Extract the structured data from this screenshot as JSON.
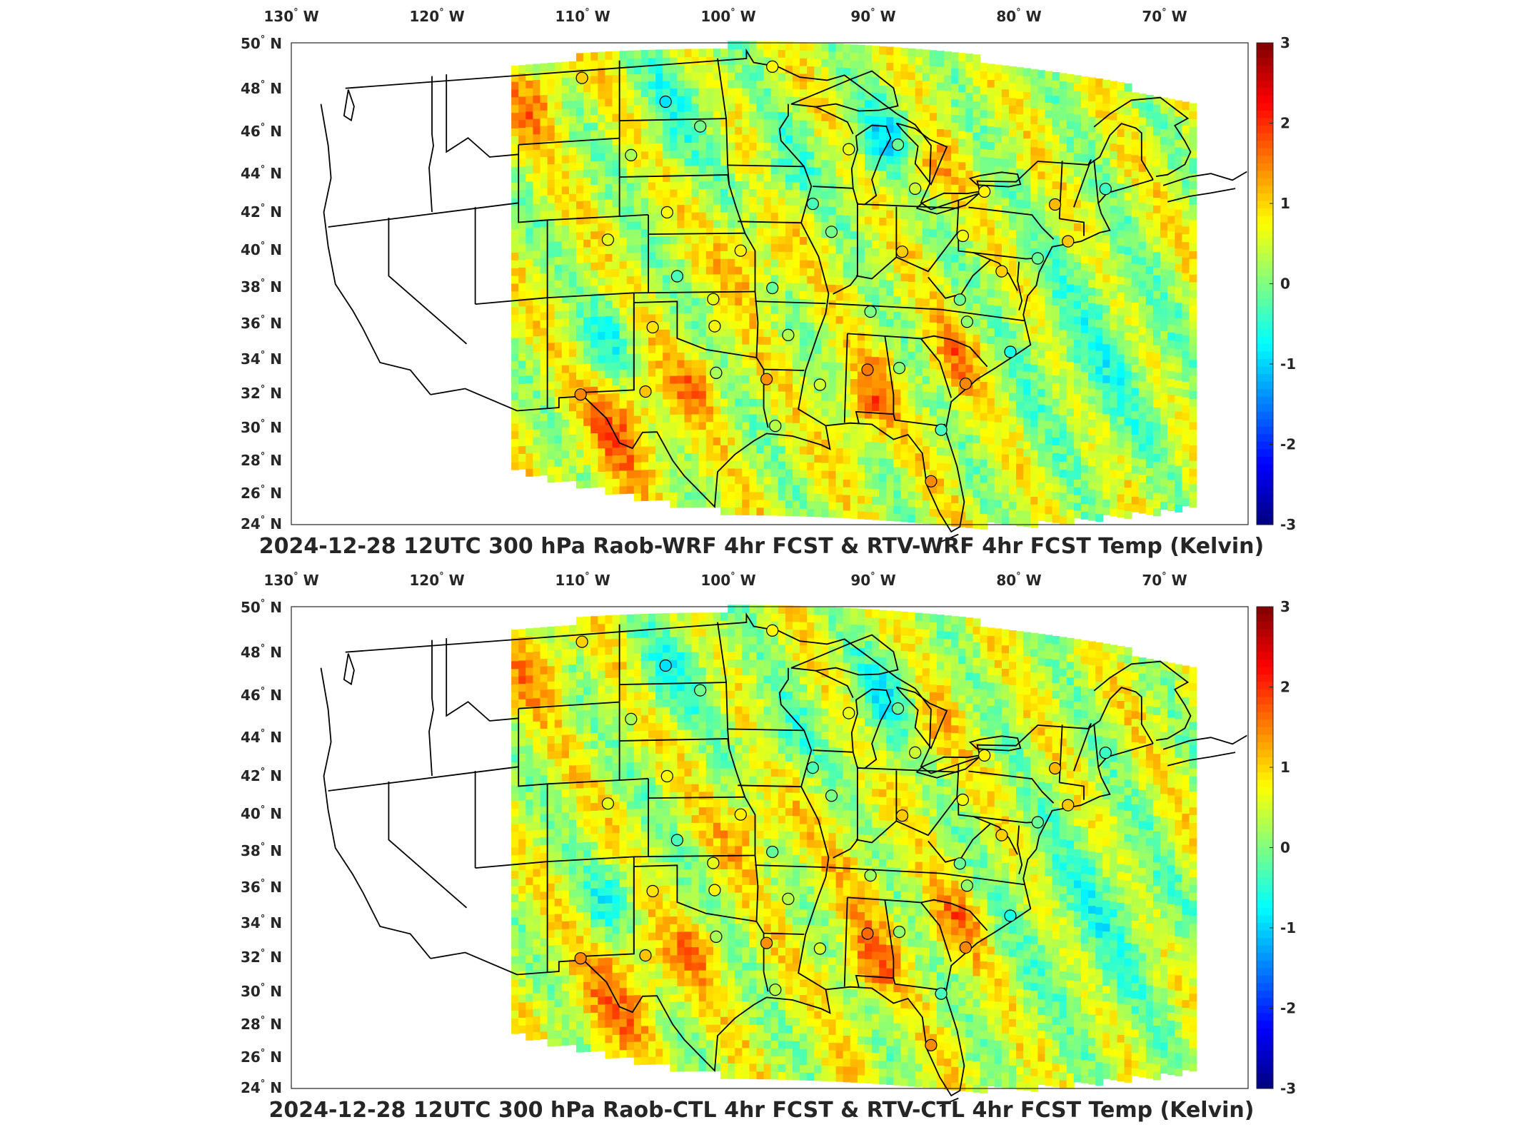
{
  "panels": [
    {
      "title": "2024-12-28 12UTC 300 hPa Raob-WRF 4hr FCST & RTV-WRF 4hr FCST Temp (Kelvin)",
      "field_variant": "wrf"
    },
    {
      "title": "2024-12-28 12UTC 300 hPa Raob-CTL 4hr FCST & RTV-CTL 4hr FCST Temp (Kelvin)",
      "field_variant": "ctl"
    }
  ],
  "lon_labels": [
    "130",
    "120",
    "110",
    "100",
    "90",
    "80",
    "70"
  ],
  "lon_suffix": "W",
  "lat_labels": [
    "50",
    "48",
    "46",
    "44",
    "42",
    "40",
    "38",
    "36",
    "34",
    "32",
    "30",
    "28",
    "26",
    "24"
  ],
  "lat_suffix": "N",
  "colorbar": {
    "ticks": [
      "3",
      "2",
      "1",
      "0",
      "-1",
      "-2",
      "-3"
    ],
    "range": [
      -3,
      3
    ],
    "colormap": "jet"
  },
  "colors": {
    "border": "#000000",
    "frame": "#262626",
    "text": "#262626"
  },
  "raob_stations": [
    {
      "lat": 48.2,
      "lon": -106.6
    },
    {
      "lat": 46.8,
      "lon": -100.8
    },
    {
      "lat": 45.5,
      "lon": -98.4
    },
    {
      "lat": 44.1,
      "lon": -103.2
    },
    {
      "lat": 41.1,
      "lon": -100.7
    },
    {
      "lat": 39.8,
      "lon": -104.8
    },
    {
      "lat": 39.1,
      "lon": -95.6
    },
    {
      "lat": 37.8,
      "lon": -100.0
    },
    {
      "lat": 36.6,
      "lon": -97.5
    },
    {
      "lat": 35.2,
      "lon": -97.4
    },
    {
      "lat": 35.2,
      "lon": -101.7
    },
    {
      "lat": 32.8,
      "lon": -97.3
    },
    {
      "lat": 31.9,
      "lon": -102.2
    },
    {
      "lat": 31.9,
      "lon": -106.7
    },
    {
      "lat": 37.2,
      "lon": -93.4
    },
    {
      "lat": 34.8,
      "lon": -92.3
    },
    {
      "lat": 32.5,
      "lon": -93.8
    },
    {
      "lat": 30.1,
      "lon": -93.2
    },
    {
      "lat": 32.3,
      "lon": -90.1
    },
    {
      "lat": 33.2,
      "lon": -86.8
    },
    {
      "lat": 33.4,
      "lon": -84.6
    },
    {
      "lat": 30.4,
      "lon": -81.7
    },
    {
      "lat": 27.7,
      "lon": -82.4
    },
    {
      "lat": 32.9,
      "lon": -80.0
    },
    {
      "lat": 34.8,
      "lon": -76.9
    },
    {
      "lat": 36.1,
      "lon": -79.9
    },
    {
      "lat": 37.2,
      "lon": -80.4
    },
    {
      "lat": 36.2,
      "lon": -86.6
    },
    {
      "lat": 39.4,
      "lon": -84.4
    },
    {
      "lat": 40.2,
      "lon": -89.3
    },
    {
      "lat": 41.6,
      "lon": -90.6
    },
    {
      "lat": 44.5,
      "lon": -88.1
    },
    {
      "lat": 44.9,
      "lon": -84.7
    },
    {
      "lat": 42.7,
      "lon": -83.5
    },
    {
      "lat": 42.9,
      "lon": -78.7
    },
    {
      "lat": 40.5,
      "lon": -80.2
    },
    {
      "lat": 38.9,
      "lon": -77.5
    },
    {
      "lat": 39.8,
      "lon": -75.0
    },
    {
      "lat": 40.9,
      "lon": -72.9
    },
    {
      "lat": 42.7,
      "lon": -73.8
    },
    {
      "lat": 43.9,
      "lon": -70.3
    },
    {
      "lat": 48.6,
      "lon": -93.4
    }
  ]
}
